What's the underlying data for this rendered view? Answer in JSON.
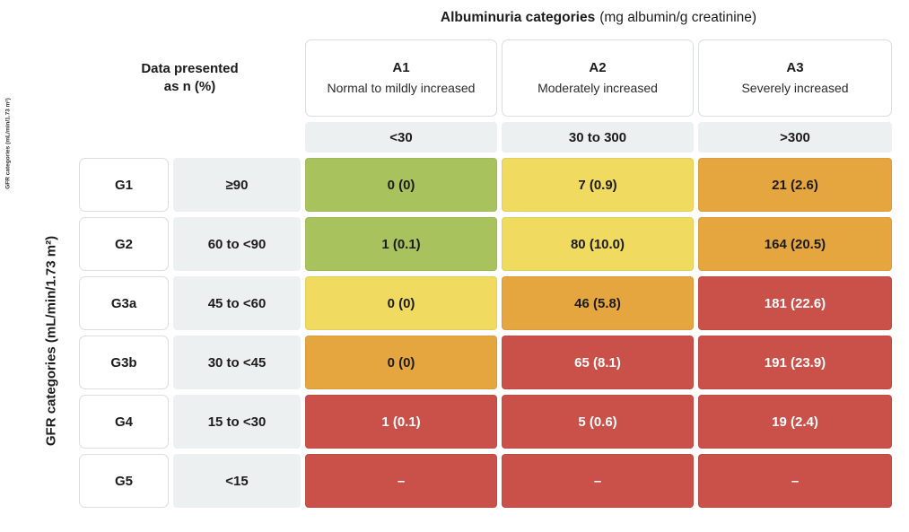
{
  "chart_data": {
    "type": "heatmap",
    "title_bold": "Albuminuria categories",
    "title_units": "(mg albumin/g creatinine)",
    "ylabel": "GFR categories (mL/min/1.73 m²)",
    "ylabel_small": "GFR categories (mL/min/1.73 m²)",
    "corner_note_line1": "Data presented",
    "corner_note_line2": "as n (%)",
    "columns": [
      {
        "code": "A1",
        "label": "Normal to mildly increased",
        "range": "<30"
      },
      {
        "code": "A2",
        "label": "Moderately increased",
        "range": "30 to 300"
      },
      {
        "code": "A3",
        "label": "Severely increased",
        "range": ">300"
      }
    ],
    "rows": [
      {
        "code": "G1",
        "range": "≥90",
        "cells": [
          {
            "value": "0 (0)",
            "bg": "green",
            "fg": "dark"
          },
          {
            "value": "7 (0.9)",
            "bg": "yellow",
            "fg": "dark"
          },
          {
            "value": "21 (2.6)",
            "bg": "orange",
            "fg": "dark"
          }
        ]
      },
      {
        "code": "G2",
        "range": "60 to <90",
        "cells": [
          {
            "value": "1 (0.1)",
            "bg": "green",
            "fg": "dark"
          },
          {
            "value": "80 (10.0)",
            "bg": "yellow",
            "fg": "dark"
          },
          {
            "value": "164 (20.5)",
            "bg": "orange",
            "fg": "dark"
          }
        ]
      },
      {
        "code": "G3a",
        "range": "45 to <60",
        "cells": [
          {
            "value": "0 (0)",
            "bg": "yellow",
            "fg": "dark"
          },
          {
            "value": "46 (5.8)",
            "bg": "orange",
            "fg": "dark"
          },
          {
            "value": "181 (22.6)",
            "bg": "red",
            "fg": "white"
          }
        ]
      },
      {
        "code": "G3b",
        "range": "30 to <45",
        "cells": [
          {
            "value": "0 (0)",
            "bg": "orange",
            "fg": "dark"
          },
          {
            "value": "65 (8.1)",
            "bg": "red",
            "fg": "white"
          },
          {
            "value": "191 (23.9)",
            "bg": "red",
            "fg": "white"
          }
        ]
      },
      {
        "code": "G4",
        "range": "15 to <30",
        "cells": [
          {
            "value": "1 (0.1)",
            "bg": "red",
            "fg": "white"
          },
          {
            "value": "5 (0.6)",
            "bg": "red",
            "fg": "white"
          },
          {
            "value": "19 (2.4)",
            "bg": "red",
            "fg": "white"
          }
        ]
      },
      {
        "code": "G5",
        "range": "<15",
        "cells": [
          {
            "value": "–",
            "bg": "red",
            "fg": "white"
          },
          {
            "value": "–",
            "bg": "red",
            "fg": "white"
          },
          {
            "value": "–",
            "bg": "red",
            "fg": "white"
          }
        ]
      }
    ],
    "palette": {
      "green": "#a8c25d",
      "yellow": "#f0da5f",
      "orange": "#e5a63f",
      "red": "#c9514a",
      "header_bg": "#edf0f0",
      "box_border": "#dadedd",
      "text_dark": "#1c1c1c",
      "text_white": "#ffffff"
    }
  }
}
